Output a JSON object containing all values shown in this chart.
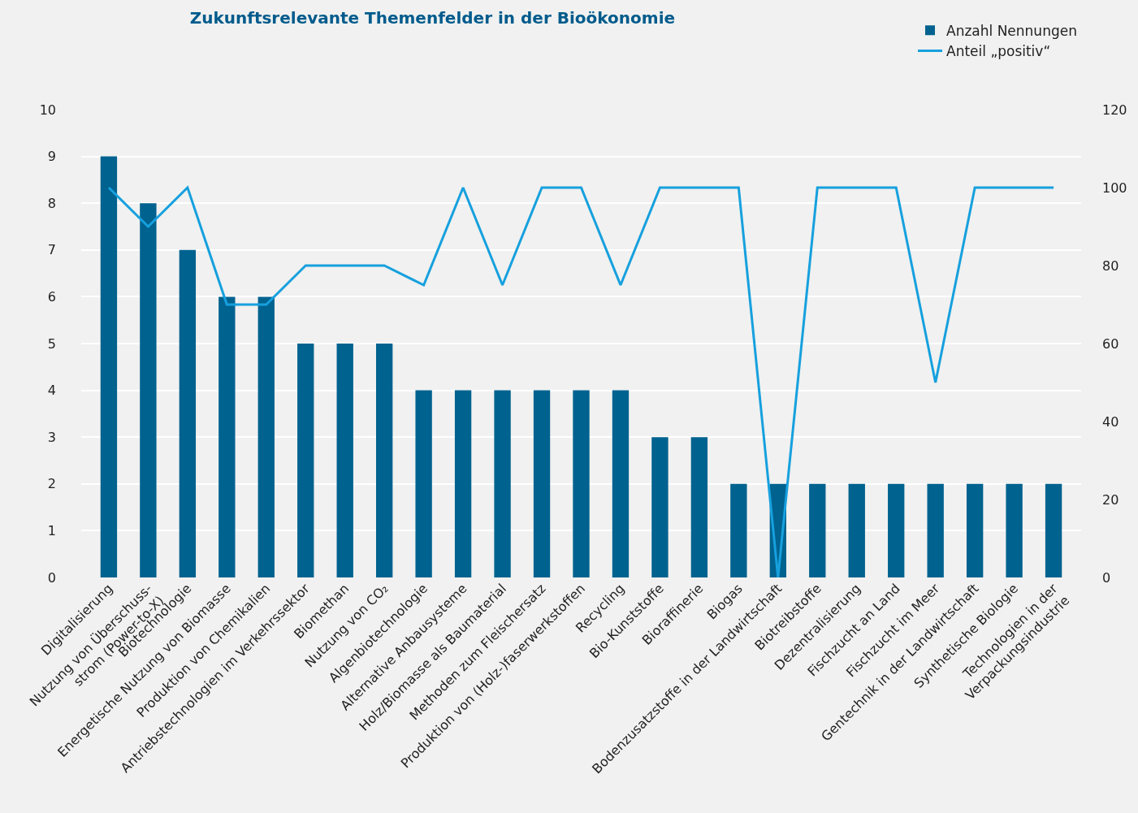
{
  "chart_data": {
    "type": "bar",
    "title": "Zukunftsrelevante Themenfelder in der Bioökonomie",
    "categories": [
      "Digitalisierung",
      "Nutzung von Überschuss-\nstrom (Power-to-X)",
      "Biotechnologie",
      "Energetische Nutzung von Biomasse",
      "Produktion von Chemikalien",
      "Antriebstechnologien im Verkehrssektor",
      "Biomethan",
      "Nutzung von CO₂",
      "Algenbiotechnologie",
      "Alternative Anbausysteme",
      "Holz/Biomasse als Baumaterial",
      "Methoden zum Fleischersatz",
      "Produktion von (Holz-)faserwerkstoffen",
      "Recycling",
      "Bio-Kunststoffe",
      "Bioraffinerie",
      "Biogas",
      "Bodenzusatzstoffe in der Landwirtschaft",
      "Biotreibstoffe",
      "Dezentralisierung",
      "Fischzucht an Land",
      "Fischzucht im Meer",
      "Gentechnik in der Landwirtschaft",
      "Synthetische Biologie",
      "Technologien in der\nVerpackungsindustrie"
    ],
    "series": [
      {
        "name": "Anzahl Nennungen",
        "color": "#00628f",
        "values": [
          9,
          8,
          7,
          6,
          6,
          5,
          5,
          5,
          4,
          4,
          4,
          4,
          4,
          4,
          3,
          3,
          2,
          2,
          2,
          2,
          2,
          2,
          2,
          2,
          2
        ]
      },
      {
        "name": "Anteil „positiv“",
        "type": "line",
        "axis": "y2",
        "color": "#16a0de",
        "values": [
          100,
          90,
          100,
          70,
          70,
          80,
          80,
          80,
          75,
          100,
          75,
          100,
          100,
          75,
          100,
          100,
          100,
          0,
          100,
          100,
          100,
          50,
          100,
          100,
          100
        ]
      }
    ],
    "ylim": [
      0,
      10
    ],
    "yticks": [
      0,
      1,
      2,
      3,
      4,
      5,
      6,
      7,
      8,
      9,
      10
    ],
    "y2lim": [
      0,
      120
    ],
    "y2ticks": [
      0,
      20,
      40,
      60,
      80,
      100,
      120
    ],
    "grid": "y",
    "legend": "top right",
    "marker": "none",
    "line_style": "solid"
  }
}
